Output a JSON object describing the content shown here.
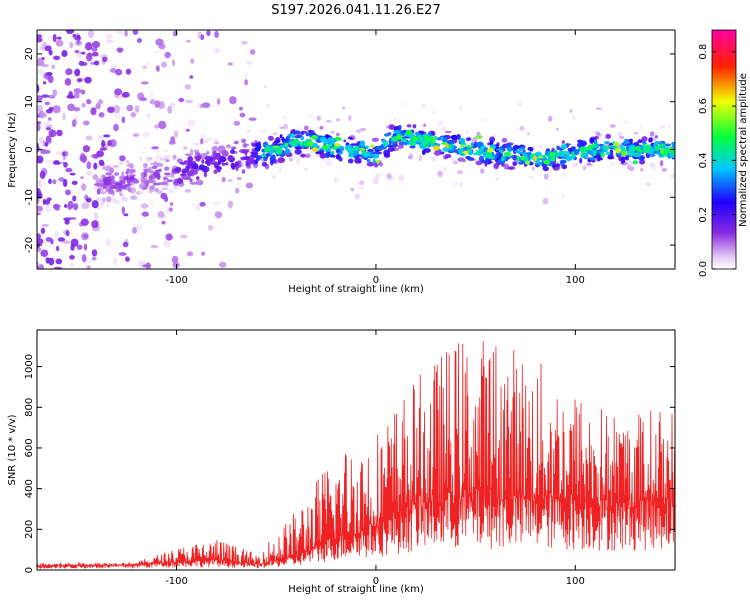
{
  "chart_data": [
    {
      "type": "heatmap",
      "title": "S197.2026.041.11.26.E27",
      "xlabel": "Height of straight line (km)",
      "ylabel": "Frequency (Hz)",
      "xlim": [
        -170,
        150
      ],
      "ylim": [
        -25,
        25
      ],
      "x_ticks": [
        -100,
        0,
        100
      ],
      "y_ticks": [
        -20,
        -10,
        0,
        10,
        20
      ],
      "colorbar": {
        "label": "Normalized spectral amplitude",
        "range": [
          0.0,
          0.88
        ],
        "ticks": [
          "0.0",
          "0.2",
          "0.4",
          "0.6",
          "0.8"
        ],
        "colormap": "rainbow (white → purple → blue → cyan → green → yellow → red → magenta)"
      },
      "description_points": {
        "noise_region_x": [
          -170,
          -60
        ],
        "signal_band_center_freq": [
          [
            -120,
            -6
          ],
          [
            -80,
            -3
          ],
          [
            -50,
            0
          ],
          [
            -40,
            2
          ],
          [
            0,
            -1
          ],
          [
            10,
            3
          ],
          [
            50,
            0
          ],
          [
            80,
            -2
          ],
          [
            110,
            0
          ],
          [
            140,
            0
          ]
        ]
      }
    },
    {
      "type": "line",
      "xlabel": "Height of straight line (km)",
      "ylabel": "SNR (10 * v/v)",
      "xlim": [
        -170,
        150
      ],
      "ylim": [
        0,
        1180
      ],
      "x_ticks": [
        -100,
        0,
        100
      ],
      "y_ticks": [
        0,
        200,
        400,
        600,
        800,
        1000
      ],
      "series": [
        {
          "name": "SNR",
          "color": "#ee2222",
          "envelope": {
            "x": [
              -170,
              -120,
              -100,
              -80,
              -60,
              -40,
              -20,
              0,
              20,
              40,
              60,
              80,
              100,
              120,
              150
            ],
            "baseline": [
              20,
              25,
              40,
              45,
              25,
              60,
              150,
              200,
              300,
              330,
              340,
              330,
              320,
              300,
              330
            ],
            "peak": [
              35,
              40,
              110,
              160,
              80,
              300,
              600,
              700,
              950,
              1150,
              1170,
              1050,
              900,
              780,
              820
            ]
          }
        }
      ]
    }
  ],
  "colors": {
    "line": "#ee2222",
    "axis": "#000000",
    "background": "#ffffff"
  }
}
